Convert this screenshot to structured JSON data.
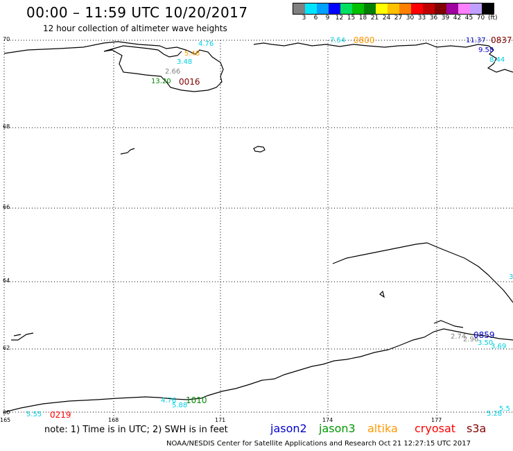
{
  "title": "00:00 – 11:59 UTC 10/20/2017",
  "subtitle": "12 hour collection of altimeter wave heights",
  "colorbar": {
    "colors": [
      "#808080",
      "#00e5ff",
      "#00a0ff",
      "#0000ff",
      "#00e060",
      "#00c000",
      "#008000",
      "#ffff00",
      "#ffc000",
      "#ff8000",
      "#ff0000",
      "#c00000",
      "#800000",
      "#a000a0",
      "#ff80ff",
      "#c0a0ff",
      "#000000"
    ],
    "labels": [
      "3",
      "6",
      "9",
      "12",
      "15",
      "18",
      "21",
      "24",
      "27",
      "30",
      "33",
      "36",
      "39",
      "42",
      "45",
      "70"
    ],
    "unit": "(ft)"
  },
  "lat_labels": [
    "70",
    "68",
    "66",
    "64",
    "62",
    "60"
  ],
  "lon_labels": [
    "165",
    "168",
    "171",
    "174",
    "177"
  ],
  "observations": [
    {
      "text": "4.76",
      "color": "#00d0e0"
    },
    {
      "text": "5.48",
      "color": "#ff9900"
    },
    {
      "text": "3.48",
      "color": "#00d0e0"
    },
    {
      "text": "2.66",
      "color": "#808080"
    },
    {
      "text": "13.20",
      "color": "#008800"
    },
    {
      "text": "7.54",
      "color": "#00d0e0"
    },
    {
      "text": "11.37",
      "color": "#0000cc"
    },
    {
      "text": "9.58",
      "color": "#0000cc"
    },
    {
      "text": "8.44",
      "color": "#00d0e0"
    },
    {
      "text": "3",
      "color": "#00d0e0"
    },
    {
      "text": "2.74",
      "color": "#808080"
    },
    {
      "text": "2.96",
      "color": "#808080"
    },
    {
      "text": "3.50",
      "color": "#00d0e0"
    },
    {
      "text": "3.69",
      "color": "#00d0e0"
    },
    {
      "text": "4.76",
      "color": "#00d0e0"
    },
    {
      "text": "5.88",
      "color": "#00d0e0"
    },
    {
      "text": "5.55",
      "color": "#00d0e0"
    },
    {
      "text": "5.28",
      "color": "#00d0e0"
    },
    {
      "text": "5.5",
      "color": "#00d0e0"
    }
  ],
  "pass_times": [
    {
      "text": "0016",
      "color": "#800000"
    },
    {
      "text": "0800",
      "color": "#ff9900"
    },
    {
      "text": "0837",
      "color": "#800000"
    },
    {
      "text": "0859",
      "color": "#0000cc"
    },
    {
      "text": "1010",
      "color": "#008800"
    },
    {
      "text": "0219",
      "color": "#ff0000"
    }
  ],
  "note": "note: 1) Time is in UTC; 2) SWH is in feet",
  "satellites": [
    {
      "name": "jason2",
      "color": "#0000cc"
    },
    {
      "name": "jason3",
      "color": "#009900"
    },
    {
      "name": "altika",
      "color": "#ff9900"
    },
    {
      "name": "cryosat",
      "color": "#ff0000"
    },
    {
      "name": "s3a",
      "color": "#800000"
    }
  ],
  "credit": "NOAA/NESDIS Center for Satellite Applications and Research     Oct 21 12:27:15 UTC 2017"
}
